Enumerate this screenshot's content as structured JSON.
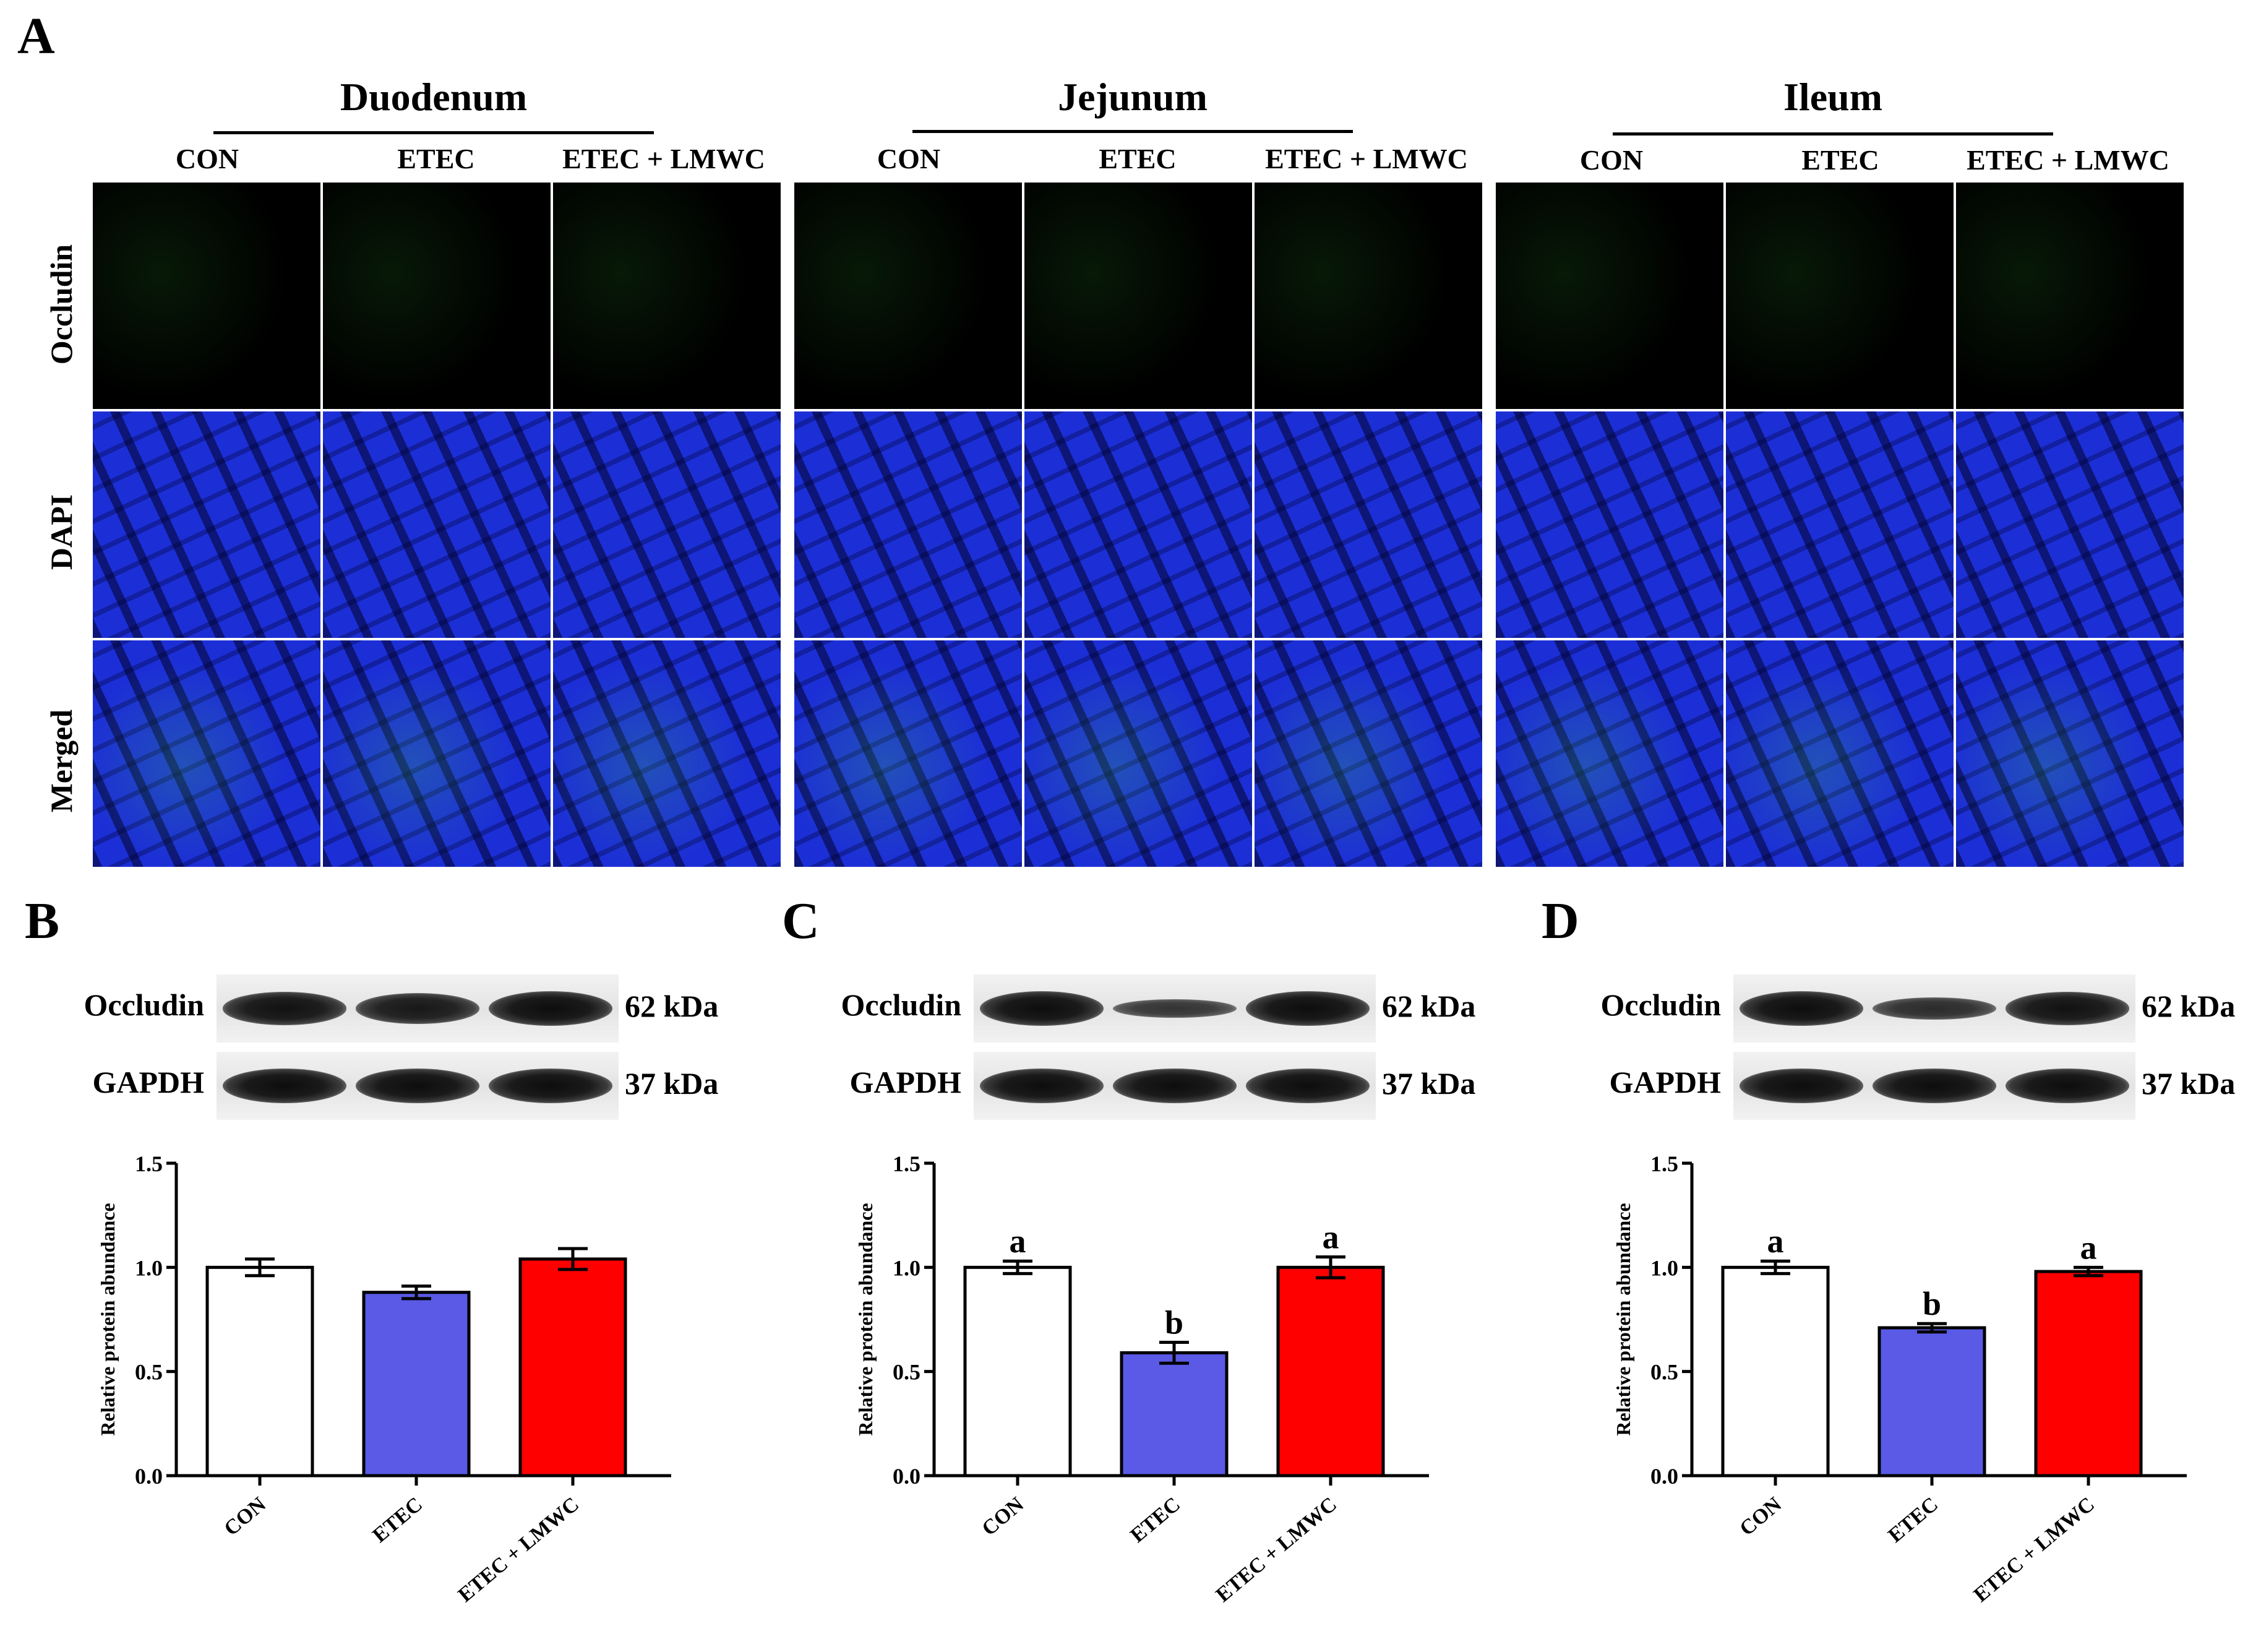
{
  "figure": {
    "panel_a": {
      "letter": "A",
      "regions": [
        {
          "title": "Duodenum",
          "groups": [
            "CON",
            "ETEC",
            "ETEC + LMWC"
          ]
        },
        {
          "title": "Jejunum",
          "groups": [
            "CON",
            "ETEC",
            "ETEC + LMWC"
          ]
        },
        {
          "title": "Ileum",
          "groups": [
            "CON",
            "ETEC",
            "ETEC + LMWC"
          ]
        }
      ],
      "rows": [
        "Occludin",
        "DAPI",
        "Merged"
      ]
    },
    "blot_panels": [
      {
        "letter": "B",
        "labels": [
          "Occludin",
          "GAPDH"
        ],
        "sizes": [
          "62 kDa",
          "37 kDa"
        ],
        "occludin_intensity": [
          0.95,
          0.88,
          1.0
        ]
      },
      {
        "letter": "C",
        "labels": [
          "Occludin",
          "GAPDH"
        ],
        "sizes": [
          "62 kDa",
          "37 kDa"
        ],
        "occludin_intensity": [
          1.0,
          0.55,
          1.0
        ]
      },
      {
        "letter": "D",
        "labels": [
          "Occludin",
          "GAPDH"
        ],
        "sizes": [
          "62 kDa",
          "37 kDa"
        ],
        "occludin_intensity": [
          1.0,
          0.65,
          0.95
        ]
      }
    ]
  },
  "chart_data": [
    {
      "type": "bar",
      "categories": [
        "CON",
        "ETEC",
        "ETEC + LMWC"
      ],
      "values": [
        1.0,
        0.88,
        1.04
      ],
      "errors": [
        0.04,
        0.03,
        0.05
      ],
      "letters": [
        "",
        "",
        ""
      ],
      "ylabel": "Relative protein abundance",
      "ylim": [
        0,
        1.5
      ],
      "yticks": [
        "0.0",
        "0.5",
        "1.0",
        "1.5"
      ],
      "colors": [
        "#ffffff",
        "#5a5ae6",
        "#ff0000"
      ]
    },
    {
      "type": "bar",
      "categories": [
        "CON",
        "ETEC",
        "ETEC + LMWC"
      ],
      "values": [
        1.0,
        0.59,
        1.0
      ],
      "errors": [
        0.03,
        0.05,
        0.05
      ],
      "letters": [
        "a",
        "b",
        "a"
      ],
      "ylabel": "Relative protein abundance",
      "ylim": [
        0,
        1.5
      ],
      "yticks": [
        "0.0",
        "0.5",
        "1.0",
        "1.5"
      ],
      "colors": [
        "#ffffff",
        "#5a5ae6",
        "#ff0000"
      ]
    },
    {
      "type": "bar",
      "categories": [
        "CON",
        "ETEC",
        "ETEC + LMWC"
      ],
      "values": [
        1.0,
        0.71,
        0.98
      ],
      "errors": [
        0.03,
        0.02,
        0.02
      ],
      "letters": [
        "a",
        "b",
        "a"
      ],
      "ylabel": "Relative protein abundance",
      "ylim": [
        0,
        1.5
      ],
      "yticks": [
        "0.0",
        "0.5",
        "1.0",
        "1.5"
      ],
      "colors": [
        "#ffffff",
        "#5a5ae6",
        "#ff0000"
      ]
    }
  ]
}
